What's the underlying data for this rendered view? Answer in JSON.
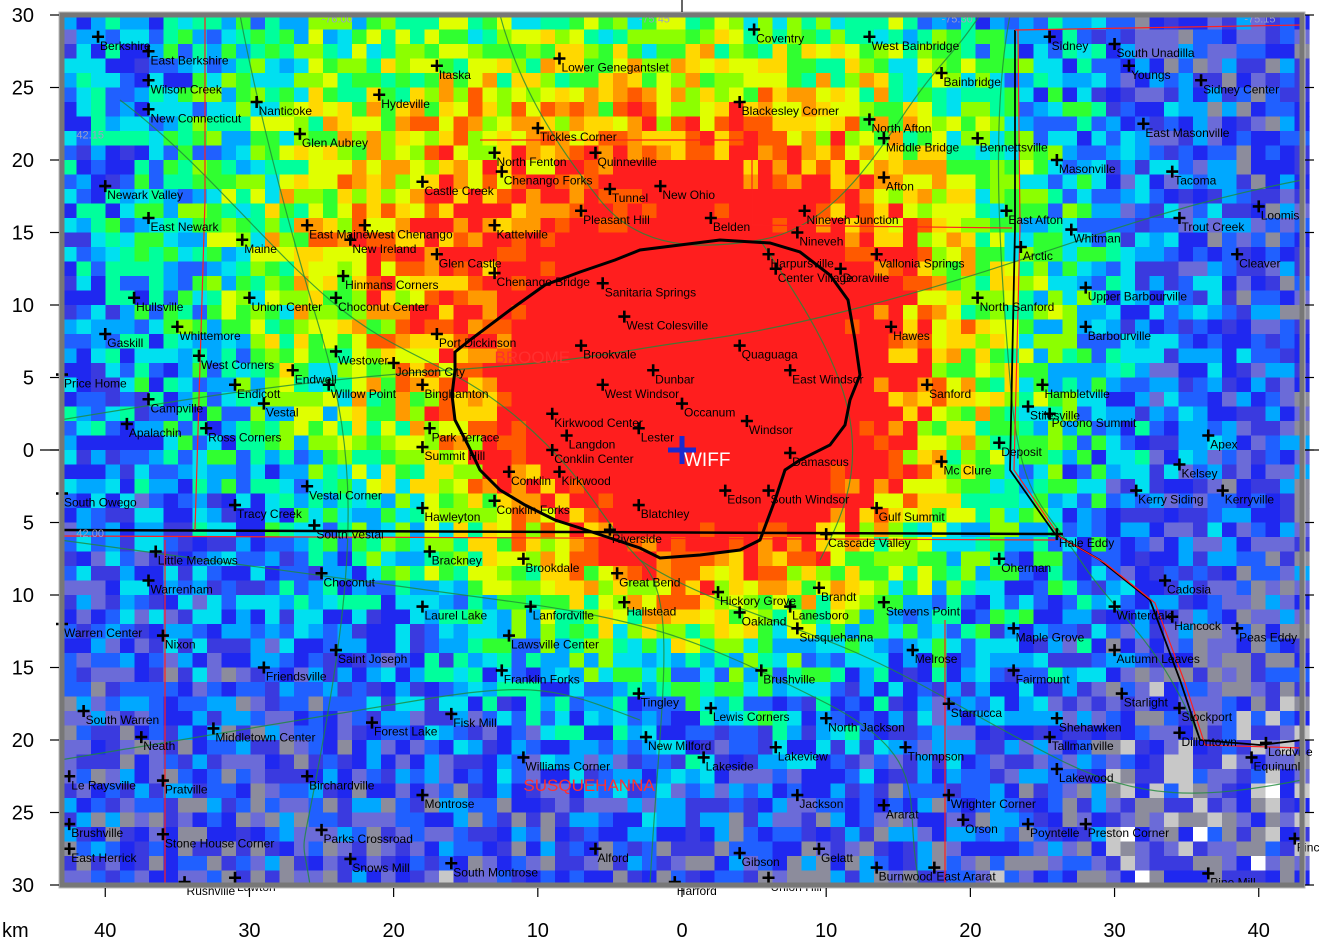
{
  "map": {
    "radar": "WIFF",
    "unit_label": "km",
    "x_ticks": [
      "40",
      "30",
      "20",
      "10",
      "0",
      "10",
      "20",
      "30",
      "40"
    ],
    "x_tick_values": [
      -40,
      -30,
      -20,
      -10,
      0,
      10,
      20,
      30,
      40
    ],
    "y_ticks": [
      "30",
      "25",
      "20",
      "15",
      "10",
      "5",
      "0",
      "5",
      "10",
      "15",
      "20",
      "25",
      "30"
    ],
    "y_tick_values": [
      30,
      25,
      20,
      15,
      10,
      5,
      0,
      -5,
      -10,
      -15,
      -20,
      -25,
      -30
    ],
    "extent_km": {
      "x": [
        -43,
        43
      ],
      "y": [
        -30,
        30
      ]
    },
    "counties": [
      {
        "name": "BROOME",
        "x": -13,
        "y": 6
      },
      {
        "name": "SUSQUEHANNA",
        "x": -11,
        "y": -23.5
      }
    ],
    "graticule_labels": [
      {
        "text": "-76.00",
        "x": -25,
        "y": 29.5
      },
      {
        "text": "-75.45",
        "x": -3,
        "y": 29.5
      },
      {
        "text": "-75.30",
        "x": 18,
        "y": 29.5
      },
      {
        "text": "-75.15",
        "x": 39,
        "y": 29.5
      },
      {
        "text": "42.15",
        "x": -42,
        "y": 21.5
      },
      {
        "text": "42.00",
        "x": -42,
        "y": -6
      }
    ],
    "places": [
      {
        "name": "Berkshire",
        "x": -40.5,
        "y": 28.5
      },
      {
        "name": "East Berkshire",
        "x": -37,
        "y": 27.5
      },
      {
        "name": "Itaska",
        "x": -17,
        "y": 26.5
      },
      {
        "name": "Lower Genegantslet",
        "x": -8.5,
        "y": 27
      },
      {
        "name": "Coventry",
        "x": 5,
        "y": 29
      },
      {
        "name": "West Bainbridge",
        "x": 13,
        "y": 28.5
      },
      {
        "name": "Sidney",
        "x": 25.5,
        "y": 28.5
      },
      {
        "name": "South Unadilla",
        "x": 30,
        "y": 28
      },
      {
        "name": "Youngs",
        "x": 31,
        "y": 26.5
      },
      {
        "name": "Bainbridge",
        "x": 18,
        "y": 26
      },
      {
        "name": "Sidney Center",
        "x": 36,
        "y": 25.5
      },
      {
        "name": "Wilson Creek",
        "x": -37,
        "y": 25.5
      },
      {
        "name": "Hydeville",
        "x": -21,
        "y": 24.5
      },
      {
        "name": "Nanticoke",
        "x": -29.5,
        "y": 24
      },
      {
        "name": "New Connecticut",
        "x": -37,
        "y": 23.5
      },
      {
        "name": "Blackesley Corner",
        "x": 4,
        "y": 24
      },
      {
        "name": "North Afton",
        "x": 13,
        "y": 22.8
      },
      {
        "name": "East Masonville",
        "x": 32,
        "y": 22.5
      },
      {
        "name": "Glen Aubrey",
        "x": -26.5,
        "y": 21.8
      },
      {
        "name": "Tickles Corner",
        "x": -10,
        "y": 22.2
      },
      {
        "name": "Middle Bridge",
        "x": 14,
        "y": 21.5
      },
      {
        "name": "Bennettsville",
        "x": 20.5,
        "y": 21.5
      },
      {
        "name": "North Fenton",
        "x": -13,
        "y": 20.5
      },
      {
        "name": "Quinneville",
        "x": -6,
        "y": 20.5
      },
      {
        "name": "Masonville",
        "x": 26,
        "y": 20
      },
      {
        "name": "Chenango Forks",
        "x": -12.5,
        "y": 19.2
      },
      {
        "name": "Castle Creek",
        "x": -18,
        "y": 18.5
      },
      {
        "name": "Newark Valley",
        "x": -40,
        "y": 18.2
      },
      {
        "name": "Tunnel",
        "x": -5,
        "y": 18
      },
      {
        "name": "New Ohio",
        "x": -1.5,
        "y": 18.2
      },
      {
        "name": "Afton",
        "x": 14,
        "y": 18.8
      },
      {
        "name": "Tacoma",
        "x": 34,
        "y": 19.2
      },
      {
        "name": "East Newark",
        "x": -37,
        "y": 16
      },
      {
        "name": "Maine",
        "x": -30.5,
        "y": 14.5
      },
      {
        "name": "East Maine",
        "x": -26,
        "y": 15.5
      },
      {
        "name": "West Chenango",
        "x": -22,
        "y": 15.5
      },
      {
        "name": "Kattelville",
        "x": -13,
        "y": 15.5
      },
      {
        "name": "Pleasant Hill",
        "x": -7,
        "y": 16.5
      },
      {
        "name": "Belden",
        "x": 2,
        "y": 16
      },
      {
        "name": "Nineveh Junction",
        "x": 8.5,
        "y": 16.5
      },
      {
        "name": "East Afton",
        "x": 22.5,
        "y": 16.5
      },
      {
        "name": "Whitman",
        "x": 27,
        "y": 15.2
      },
      {
        "name": "Trout Creek",
        "x": 34.5,
        "y": 16
      },
      {
        "name": "Loomis",
        "x": 40,
        "y": 16.8
      },
      {
        "name": "New Ireland",
        "x": -23,
        "y": 14.5
      },
      {
        "name": "Nineveh",
        "x": 8,
        "y": 15
      },
      {
        "name": "Glen Castle",
        "x": -17,
        "y": 13.5
      },
      {
        "name": "Arctic",
        "x": 23.5,
        "y": 14
      },
      {
        "name": "Cleaver",
        "x": 38.5,
        "y": 13.5
      },
      {
        "name": "Harpursville",
        "x": 6,
        "y": 13.5
      },
      {
        "name": "Vallonia Springs",
        "x": 13.5,
        "y": 13.5
      },
      {
        "name": "Chenango Bridge",
        "x": -13,
        "y": 12.2
      },
      {
        "name": "Hinmans Corners",
        "x": -23.5,
        "y": 12
      },
      {
        "name": "Center Village",
        "x": 6.5,
        "y": 12.5
      },
      {
        "name": "Doraville",
        "x": 11,
        "y": 12.5
      },
      {
        "name": "Sanitaria Springs",
        "x": -5.5,
        "y": 11.5
      },
      {
        "name": "Upper Barbourville",
        "x": 28,
        "y": 11.2
      },
      {
        "name": "Hullsville",
        "x": -38,
        "y": 10.5
      },
      {
        "name": "Union Center",
        "x": -30,
        "y": 10.5
      },
      {
        "name": "Choconut Center",
        "x": -24,
        "y": 10.5
      },
      {
        "name": "North Sanford",
        "x": 20.5,
        "y": 10.5
      },
      {
        "name": "West Colesville",
        "x": -4,
        "y": 9.2
      },
      {
        "name": "Whittemore",
        "x": -35,
        "y": 8.5
      },
      {
        "name": "Barbourville",
        "x": 28,
        "y": 8.5
      },
      {
        "name": "Port Dickinson",
        "x": -17,
        "y": 8
      },
      {
        "name": "Hawes",
        "x": 14.5,
        "y": 8.5
      },
      {
        "name": "Gaskill",
        "x": -40,
        "y": 8
      },
      {
        "name": "Brookvale",
        "x": -7,
        "y": 7.2
      },
      {
        "name": "Quaguaga",
        "x": 4,
        "y": 7.2
      },
      {
        "name": "West Corners",
        "x": -33.5,
        "y": 6.5
      },
      {
        "name": "Westover",
        "x": -24,
        "y": 6.8
      },
      {
        "name": "Johnson City",
        "x": -20,
        "y": 6
      },
      {
        "name": "Dunbar",
        "x": -2,
        "y": 5.5
      },
      {
        "name": "East Windsor",
        "x": 7.5,
        "y": 5.5
      },
      {
        "name": "Endwell",
        "x": -27,
        "y": 5.5
      },
      {
        "name": "Price Home",
        "x": -43,
        "y": 5.2
      },
      {
        "name": "Sanford",
        "x": 17,
        "y": 4.5
      },
      {
        "name": "Endicott",
        "x": -31,
        "y": 4.5
      },
      {
        "name": "Willow Point",
        "x": -24.5,
        "y": 4.5
      },
      {
        "name": "Binghamton",
        "x": -18,
        "y": 4.5
      },
      {
        "name": "West Windsor",
        "x": -5.5,
        "y": 4.5
      },
      {
        "name": "Hambletville",
        "x": 25,
        "y": 4.5
      },
      {
        "name": "Campville",
        "x": -37,
        "y": 3.5
      },
      {
        "name": "Vestal",
        "x": -29,
        "y": 3.2
      },
      {
        "name": "Occanum",
        "x": 0,
        "y": 3.2
      },
      {
        "name": "Stilesville",
        "x": 24,
        "y": 3
      },
      {
        "name": "Kirkwood Center",
        "x": -9,
        "y": 2.5
      },
      {
        "name": "Windsor",
        "x": 4.5,
        "y": 2
      },
      {
        "name": "Pocono Summit",
        "x": 25.5,
        "y": 2.5
      },
      {
        "name": "Apalachin",
        "x": -38.5,
        "y": 1.8
      },
      {
        "name": "Ross Corners",
        "x": -33,
        "y": 1.5
      },
      {
        "name": "Park Terrace",
        "x": -17.5,
        "y": 1.5
      },
      {
        "name": "Lester",
        "x": -3,
        "y": 1.5
      },
      {
        "name": "Langdon",
        "x": -8,
        "y": 1
      },
      {
        "name": "Apex",
        "x": 36.5,
        "y": 1
      },
      {
        "name": "Summit Hill",
        "x": -18,
        "y": 0.2
      },
      {
        "name": "Conklin Center",
        "x": -9,
        "y": 0
      },
      {
        "name": "Deposit",
        "x": 22,
        "y": 0.5
      },
      {
        "name": "Damascus",
        "x": 7.5,
        "y": -0.2
      },
      {
        "name": "Mc Clure",
        "x": 18,
        "y": -0.8
      },
      {
        "name": "Kelsey",
        "x": 34.5,
        "y": -1
      },
      {
        "name": "Conklin",
        "x": -12,
        "y": -1.5
      },
      {
        "name": "Kirkwood",
        "x": -8.5,
        "y": -1.5
      },
      {
        "name": "Kerry Siding",
        "x": 31.5,
        "y": -2.8
      },
      {
        "name": "Kerryville",
        "x": 37.5,
        "y": -2.8
      },
      {
        "name": "South Owego",
        "x": -43,
        "y": -3
      },
      {
        "name": "Vestal Corner",
        "x": -26,
        "y": -2.5
      },
      {
        "name": "Edson",
        "x": 3,
        "y": -2.8
      },
      {
        "name": "South Windsor",
        "x": 6,
        "y": -2.8
      },
      {
        "name": "Conklin Forks",
        "x": -13,
        "y": -3.5
      },
      {
        "name": "Blatchley",
        "x": -3,
        "y": -3.8
      },
      {
        "name": "Tracy Creek",
        "x": -31,
        "y": -3.8
      },
      {
        "name": "Hawleyton",
        "x": -18,
        "y": -4
      },
      {
        "name": "Gulf Summit",
        "x": 13.5,
        "y": -4
      },
      {
        "name": "South Vestal",
        "x": -25.5,
        "y": -5.2
      },
      {
        "name": "Riverside",
        "x": -5,
        "y": -5.5
      },
      {
        "name": "Cascade Valley",
        "x": 10,
        "y": -5.8
      },
      {
        "name": "Hale Eddy",
        "x": 26,
        "y": -5.8
      },
      {
        "name": "Little Meadows",
        "x": -36.5,
        "y": -7
      },
      {
        "name": "Brackney",
        "x": -17.5,
        "y": -7
      },
      {
        "name": "Oherman",
        "x": 22,
        "y": -7.5
      },
      {
        "name": "Brookdale",
        "x": -11,
        "y": -7.5
      },
      {
        "name": "Choconut",
        "x": -25,
        "y": -8.5
      },
      {
        "name": "Great Bend",
        "x": -4.5,
        "y": -8.5
      },
      {
        "name": "Warrenham",
        "x": -37,
        "y": -9
      },
      {
        "name": "Cadosia",
        "x": 33.5,
        "y": -9
      },
      {
        "name": "Hickory Grove",
        "x": 2.5,
        "y": -9.8
      },
      {
        "name": "Brandt",
        "x": 9.5,
        "y": -9.5
      },
      {
        "name": "Hallstead",
        "x": -4,
        "y": -10.5
      },
      {
        "name": "Stevens Point",
        "x": 14,
        "y": -10.5
      },
      {
        "name": "Laurel Lake",
        "x": -18,
        "y": -10.8
      },
      {
        "name": "Lanfordville",
        "x": -10.5,
        "y": -10.8
      },
      {
        "name": "Winterdale",
        "x": 30,
        "y": -10.8
      },
      {
        "name": "Oakland",
        "x": 4,
        "y": -11.2
      },
      {
        "name": "Lanesboro",
        "x": 7.5,
        "y": -10.8
      },
      {
        "name": "Hancock",
        "x": 34,
        "y": -11.5
      },
      {
        "name": "Warren Center",
        "x": -43,
        "y": -12
      },
      {
        "name": "Peas Eddy",
        "x": 38.5,
        "y": -12.3
      },
      {
        "name": "Susquehanna",
        "x": 8,
        "y": -12.3
      },
      {
        "name": "Maple Grove",
        "x": 23,
        "y": -12.3
      },
      {
        "name": "Nixon",
        "x": -36,
        "y": -12.8
      },
      {
        "name": "Lawsville Center",
        "x": -12,
        "y": -12.8
      },
      {
        "name": "Saint Joseph",
        "x": -24,
        "y": -13.8
      },
      {
        "name": "Melrose",
        "x": 16,
        "y": -13.8
      },
      {
        "name": "Autumn Leaves",
        "x": 30,
        "y": -13.8
      },
      {
        "name": "Friendsville",
        "x": -29,
        "y": -15
      },
      {
        "name": "Franklin Forks",
        "x": -12.5,
        "y": -15.2
      },
      {
        "name": "Fairmount",
        "x": 23,
        "y": -15.2
      },
      {
        "name": "Brushville",
        "x": 5.5,
        "y": -15.2
      },
      {
        "name": "Tingley",
        "x": -3,
        "y": -16.8
      },
      {
        "name": "Starlight",
        "x": 30.5,
        "y": -16.8
      },
      {
        "name": "Starrucca",
        "x": 18.5,
        "y": -17.5
      },
      {
        "name": "Stockport",
        "x": 34.5,
        "y": -17.8
      },
      {
        "name": "Lewis Corners",
        "x": 2,
        "y": -17.8
      },
      {
        "name": "South Warren",
        "x": -41.5,
        "y": -18
      },
      {
        "name": "Fisk Mill",
        "x": -16,
        "y": -18.2
      },
      {
        "name": "North Jackson",
        "x": 10,
        "y": -18.5
      },
      {
        "name": "Shehawken",
        "x": 26,
        "y": -18.5
      },
      {
        "name": "Forest Lake",
        "x": -21.5,
        "y": -18.8
      },
      {
        "name": "Middletown Center",
        "x": -32.5,
        "y": -19.2
      },
      {
        "name": "Dillontown",
        "x": 34.5,
        "y": -19.5
      },
      {
        "name": "Neath",
        "x": -37.5,
        "y": -19.8
      },
      {
        "name": "New Milford",
        "x": -2.5,
        "y": -19.8
      },
      {
        "name": "Tallmanville",
        "x": 25.5,
        "y": -19.8
      },
      {
        "name": "Lordville",
        "x": 40.5,
        "y": -20.2
      },
      {
        "name": "Lakeview",
        "x": 6.5,
        "y": -20.5
      },
      {
        "name": "Thompson",
        "x": 15.5,
        "y": -20.5
      },
      {
        "name": "Equinunk",
        "x": 39.5,
        "y": -21.2
      },
      {
        "name": "Williams Corner",
        "x": -11,
        "y": -21.2
      },
      {
        "name": "Lakeside",
        "x": 1.5,
        "y": -21.2
      },
      {
        "name": "Lakewood",
        "x": 26,
        "y": -22
      },
      {
        "name": "Le Raysville",
        "x": -42.5,
        "y": -22.5
      },
      {
        "name": "Pratville",
        "x": -36,
        "y": -22.8
      },
      {
        "name": "Birchardville",
        "x": -26,
        "y": -22.5
      },
      {
        "name": "Montrose",
        "x": -18,
        "y": -23.8
      },
      {
        "name": "Jackson",
        "x": 8,
        "y": -23.8
      },
      {
        "name": "Wrighter Corner",
        "x": 18.5,
        "y": -23.8
      },
      {
        "name": "Ararat",
        "x": 14,
        "y": -24.5
      },
      {
        "name": "Orson",
        "x": 19.5,
        "y": -25.5
      },
      {
        "name": "Poyntelle",
        "x": 24,
        "y": -25.8
      },
      {
        "name": "Preston Corner",
        "x": 28,
        "y": -25.8
      },
      {
        "name": "Brushville",
        "x": -42.5,
        "y": -25.8
      },
      {
        "name": "Stone House Corner",
        "x": -36,
        "y": -26.5
      },
      {
        "name": "Parks Crossroad",
        "x": -25,
        "y": -26.2
      },
      {
        "name": "Fince",
        "x": 42.5,
        "y": -26.8
      },
      {
        "name": "East Herrick",
        "x": -42.5,
        "y": -27.5
      },
      {
        "name": "Alford",
        "x": -6,
        "y": -27.5
      },
      {
        "name": "Gibson",
        "x": 4,
        "y": -27.8
      },
      {
        "name": "Gelatt",
        "x": 9.5,
        "y": -27.5
      },
      {
        "name": "Snows Mill",
        "x": -23,
        "y": -28.2
      },
      {
        "name": "South Montrose",
        "x": -16,
        "y": -28.5
      },
      {
        "name": "Burnwood",
        "x": 13.5,
        "y": -28.8
      },
      {
        "name": "East Ararat",
        "x": 17.5,
        "y": -28.8
      },
      {
        "name": "Pine Mill",
        "x": 36.5,
        "y": -29.2
      },
      {
        "name": "Rushville",
        "x": -34.5,
        "y": -29.8
      },
      {
        "name": "Lawton",
        "x": -31,
        "y": -29.5
      },
      {
        "name": "Union Hill",
        "x": 6,
        "y": -29.5
      },
      {
        "name": "Harford",
        "x": -0.5,
        "y": -29.8
      }
    ]
  }
}
